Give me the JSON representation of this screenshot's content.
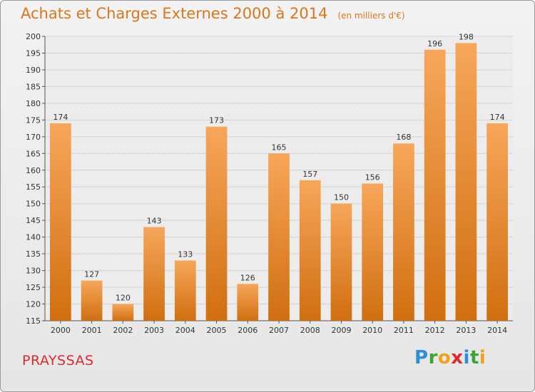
{
  "title": "Achats et Charges Externes 2000 à 2014",
  "title_unit": "(en milliers d'€)",
  "commune": "PRAYSSAS",
  "logo": {
    "letters": [
      "P",
      "r",
      "o",
      "x",
      "i",
      "t",
      "i"
    ],
    "colors": [
      "#2a8fd6",
      "#3aa534",
      "#f0a21c",
      "#e2282e",
      "#2a8fd6",
      "#3aa534",
      "#f0a21c"
    ]
  },
  "colors": {
    "accent": "#d9771e",
    "bar_top": "#f7a65a",
    "bar_bottom": "#d06f10",
    "commune": "#e2282e"
  },
  "chart_data": {
    "type": "bar",
    "categories": [
      "2000",
      "2001",
      "2002",
      "2003",
      "2004",
      "2005",
      "2006",
      "2007",
      "2008",
      "2009",
      "2010",
      "2011",
      "2012",
      "2013",
      "2014"
    ],
    "values": [
      174,
      127,
      120,
      143,
      133,
      173,
      126,
      165,
      157,
      150,
      156,
      168,
      196,
      198,
      174
    ],
    "ylim": [
      115,
      200
    ],
    "yticks": [
      115,
      120,
      125,
      130,
      135,
      140,
      145,
      150,
      155,
      160,
      165,
      170,
      175,
      180,
      185,
      190,
      195,
      200
    ],
    "grid": true,
    "data_labels": true,
    "xlabel": "",
    "ylabel": ""
  }
}
